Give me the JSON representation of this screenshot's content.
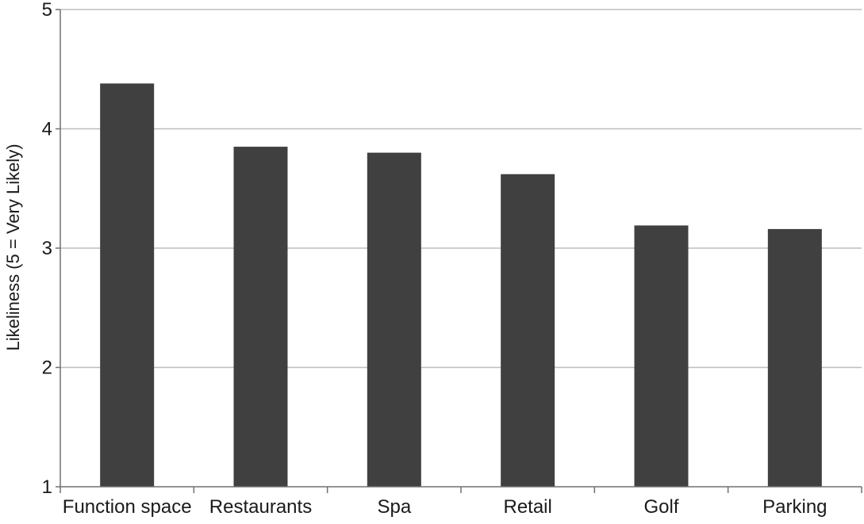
{
  "chart_data": {
    "type": "bar",
    "categories": [
      "Function space",
      "Restaurants",
      "Spa",
      "Retail",
      "Golf",
      "Parking"
    ],
    "values": [
      4.38,
      3.85,
      3.8,
      3.62,
      3.19,
      3.16
    ],
    "title": "",
    "xlabel": "",
    "ylabel": "Likeliness (5 = Very Likely)",
    "ylim": [
      1,
      5
    ],
    "yticks": [
      "1",
      "2",
      "3",
      "4",
      "5"
    ],
    "grid": true,
    "legend": "none",
    "colors": {
      "bar": "#404040",
      "grid": "#bdbdbd",
      "axis": "#707070"
    }
  }
}
